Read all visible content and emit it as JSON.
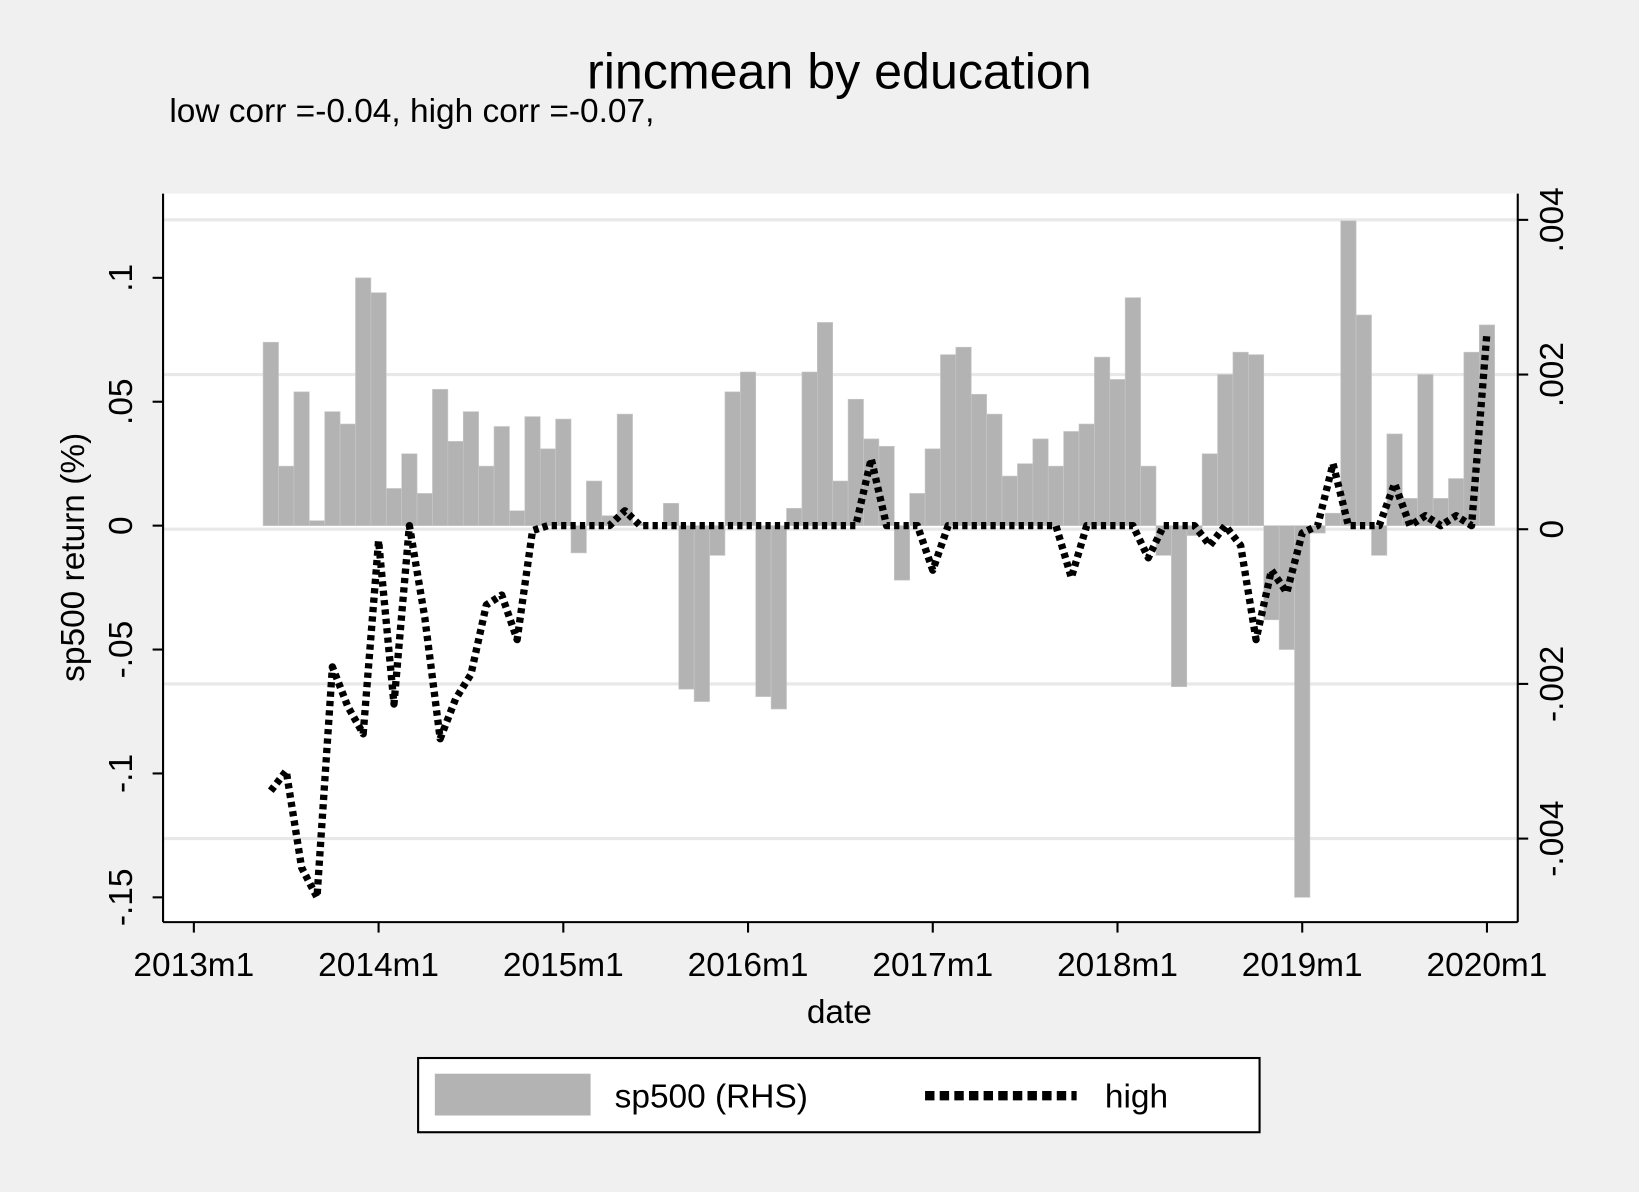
{
  "chart_data": {
    "type": "combo",
    "title": "rincmean by education",
    "subtitle": "low corr =-0.04, high corr =-0.07,",
    "y_label": "sp500 return (%)",
    "x_label": "date",
    "x": [
      "2013m6",
      "2013m7",
      "2013m8",
      "2013m9",
      "2013m10",
      "2013m11",
      "2013m12",
      "2014m1",
      "2014m2",
      "2014m3",
      "2014m4",
      "2014m5",
      "2014m6",
      "2014m7",
      "2014m8",
      "2014m9",
      "2014m10",
      "2014m11",
      "2014m12",
      "2015m1",
      "2015m2",
      "2015m3",
      "2015m4",
      "2015m5",
      "2015m6",
      "2015m7",
      "2015m8",
      "2015m9",
      "2015m10",
      "2015m11",
      "2015m12",
      "2016m1",
      "2016m2",
      "2016m3",
      "2016m4",
      "2016m5",
      "2016m6",
      "2016m7",
      "2016m8",
      "2016m9",
      "2016m10",
      "2016m11",
      "2016m12",
      "2017m1",
      "2017m2",
      "2017m3",
      "2017m4",
      "2017m5",
      "2017m6",
      "2017m7",
      "2017m8",
      "2017m9",
      "2017m10",
      "2017m11",
      "2017m12",
      "2018m1",
      "2018m2",
      "2018m3",
      "2018m4",
      "2018m5",
      "2018m6",
      "2018m7",
      "2018m8",
      "2018m9",
      "2018m10",
      "2018m11",
      "2018m12",
      "2019m1",
      "2019m2",
      "2019m3",
      "2019m4",
      "2019m5",
      "2019m6",
      "2019m7",
      "2019m8",
      "2019m9",
      "2019m10",
      "2019m11",
      "2019m12",
      "2020m1"
    ],
    "series": [
      {
        "name": "sp500 (RHS)",
        "type": "bar",
        "color": "#b3b3b3",
        "values": [
          0.074,
          0.024,
          0.054,
          0.002,
          0.046,
          0.041,
          0.1,
          0.094,
          0.015,
          0.029,
          0.013,
          0.055,
          0.034,
          0.046,
          0.024,
          0.04,
          0.006,
          0.044,
          0.031,
          0.043,
          -0.011,
          0.018,
          0.004,
          0.045,
          0.001,
          0,
          0.009,
          -0.066,
          -0.071,
          -0.012,
          0.054,
          0.062,
          -0.069,
          -0.074,
          0.007,
          0.062,
          0.082,
          0.018,
          0.051,
          0.035,
          0.032,
          -0.022,
          0.013,
          0.031,
          0.069,
          0.072,
          0.053,
          0.045,
          0.02,
          0.025,
          0.035,
          0.024,
          0.038,
          0.041,
          0.068,
          0.059,
          0.092,
          0.024,
          -0.012,
          -0.065,
          -0.004,
          0.029,
          0.061,
          0.07,
          0.069,
          -0.038,
          -0.05,
          -0.15,
          -0.003,
          0.005,
          0.123,
          0.085,
          -0.012,
          0.037,
          0.011,
          0.061,
          0.011,
          0.019,
          0.07,
          0.081
        ]
      },
      {
        "name": "high",
        "type": "line",
        "color": "#000000",
        "values": [
          -0.107,
          -0.099,
          -0.138,
          -0.15,
          -0.057,
          -0.073,
          -0.084,
          -0.006,
          -0.072,
          0,
          -0.037,
          -0.086,
          -0.07,
          -0.06,
          -0.032,
          -0.028,
          -0.046,
          -0.002,
          0,
          0,
          0,
          0,
          0,
          0.006,
          0,
          0,
          0,
          0,
          0,
          0,
          0,
          0,
          0,
          0,
          0,
          0,
          0,
          0,
          0,
          0.027,
          0,
          0,
          0,
          -0.018,
          0,
          0,
          0,
          0,
          0,
          0,
          0,
          0,
          -0.021,
          0,
          0,
          0,
          0,
          -0.013,
          0,
          0,
          0,
          -0.008,
          0,
          -0.008,
          -0.046,
          -0.018,
          -0.027,
          -0.003,
          0,
          0.025,
          0,
          0,
          0,
          0.017,
          0,
          0.004,
          0,
          0.004,
          0,
          0.078
        ]
      }
    ],
    "xlim": [
      "2012m11",
      "2020m3"
    ],
    "xticks": [
      "2013m1",
      "2014m1",
      "2015m1",
      "2016m1",
      "2017m1",
      "2018m1",
      "2019m1",
      "2020m1"
    ],
    "ylim": [
      -0.16,
      0.134
    ],
    "yticks": [
      {
        "value": -0.15,
        "label": "-.15"
      },
      {
        "value": -0.1,
        "label": "-.1"
      },
      {
        "value": -0.05,
        "label": "-.05"
      },
      0,
      {
        "value": 0.05,
        "label": ".05"
      },
      {
        "value": 0.1,
        "label": ".1"
      }
    ],
    "y2lim": [
      -0.00508,
      0.00434
    ],
    "y2ticks": [
      {
        "value": -0.004,
        "label": "-.004"
      },
      {
        "value": -0.002,
        "label": "-.002"
      },
      0,
      {
        "value": 0.002,
        "label": ".002"
      },
      {
        "value": 0.004,
        "label": ".004"
      }
    ],
    "grid": true,
    "legend": "bottom"
  }
}
